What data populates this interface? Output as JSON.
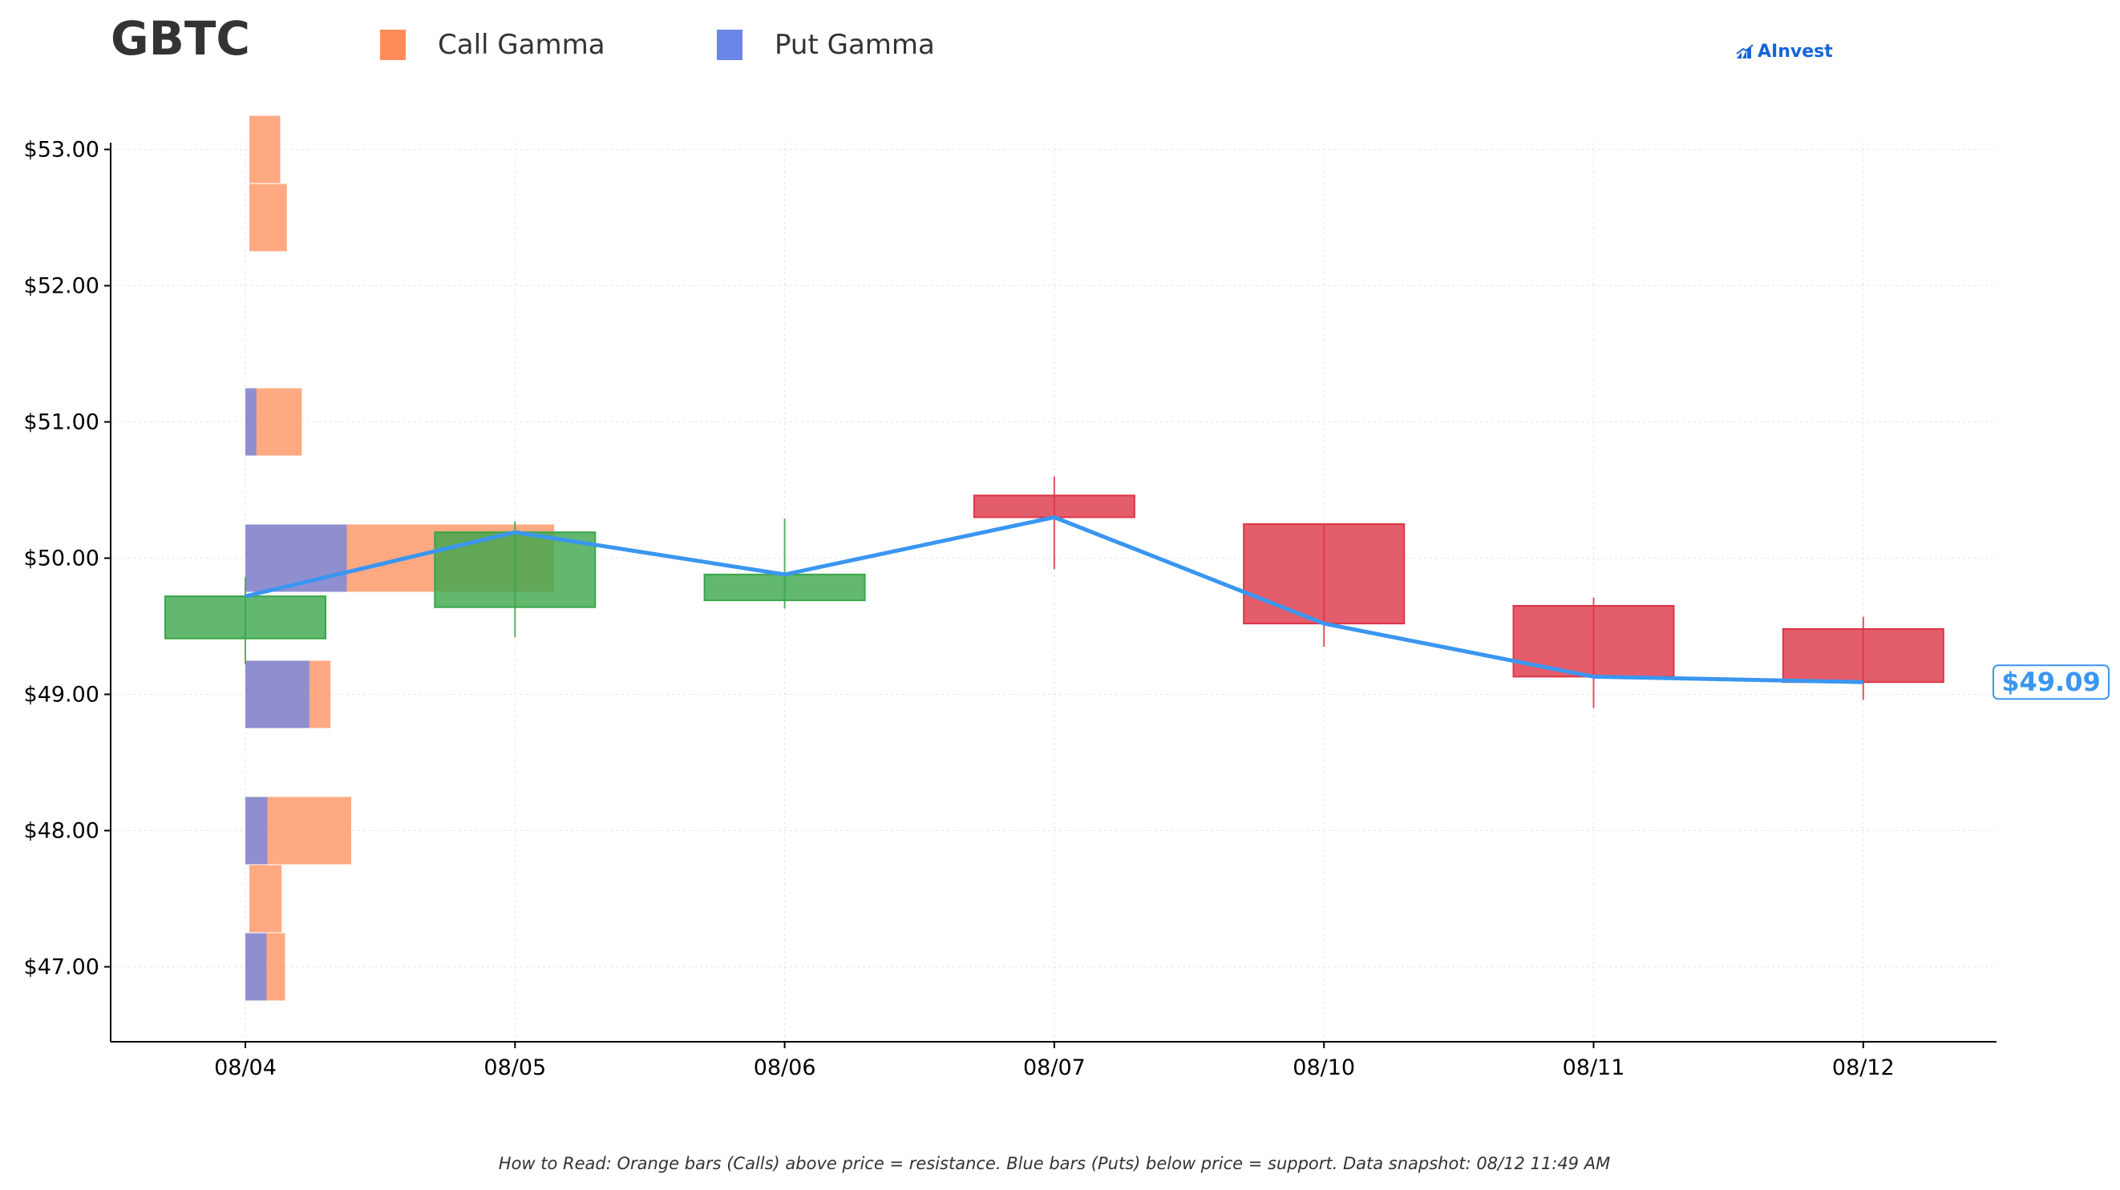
{
  "ticker": "GBTC",
  "legend": {
    "call_label": "Call Gamma",
    "put_label": "Put Gamma"
  },
  "brand": {
    "name": "AInvest"
  },
  "colors": {
    "call": "#FF8C5A",
    "put": "#6A87E8",
    "up": "#3AA64A",
    "down": "#DC3545",
    "price_line": "#3A96F0"
  },
  "footnote": "How to Read: Orange bars (Calls) above price = resistance. Blue bars (Puts) below price = support. Data snapshot: 08/12 11:49 AM",
  "chart_data": {
    "type": "candlestick",
    "title": "GBTC",
    "categories": [
      "08/04",
      "08/05",
      "08/06",
      "08/07",
      "08/10",
      "08/11",
      "08/12"
    ],
    "ylim": [
      46.45,
      53.05
    ],
    "yticks": [
      47.0,
      48.0,
      49.0,
      50.0,
      51.0,
      52.0,
      53.0
    ],
    "ytick_labels": [
      "$47.00",
      "$48.00",
      "$49.00",
      "$50.00",
      "$51.00",
      "$52.00",
      "$53.00"
    ],
    "grid": true,
    "candles": [
      {
        "date": "08/04",
        "open": 49.41,
        "high": 49.86,
        "low": 49.22,
        "close": 49.72
      },
      {
        "date": "08/05",
        "open": 49.64,
        "high": 50.27,
        "low": 49.42,
        "close": 50.19
      },
      {
        "date": "08/06",
        "open": 49.69,
        "high": 50.29,
        "low": 49.63,
        "close": 49.88
      },
      {
        "date": "08/07",
        "open": 50.46,
        "high": 50.6,
        "low": 49.92,
        "close": 50.3
      },
      {
        "date": "08/10",
        "open": 50.25,
        "high": 50.25,
        "low": 49.35,
        "close": 49.52
      },
      {
        "date": "08/11",
        "open": 49.65,
        "high": 49.71,
        "low": 48.9,
        "close": 49.13
      },
      {
        "date": "08/12",
        "open": 49.48,
        "high": 49.57,
        "low": 48.96,
        "close": 49.09
      }
    ],
    "price_line": {
      "name": "Close",
      "values": [
        49.72,
        50.19,
        49.88,
        50.3,
        49.52,
        49.13,
        49.09
      ]
    },
    "last_price_label": "$49.09",
    "gamma_levels": [
      {
        "strike": 53.0,
        "call": 0.7,
        "put": 0
      },
      {
        "strike": 52.5,
        "call": 0.85,
        "put": 0
      },
      {
        "strike": 51.0,
        "call": 1.28,
        "put": 0.25
      },
      {
        "strike": 50.0,
        "call": 7.0,
        "put": 2.3
      },
      {
        "strike": 49.0,
        "call": 1.93,
        "put": 1.45
      },
      {
        "strike": 48.0,
        "call": 2.4,
        "put": 0.5
      },
      {
        "strike": 47.5,
        "call": 0.73,
        "put": 0
      },
      {
        "strike": 47.0,
        "call": 0.9,
        "put": 0.48
      }
    ]
  }
}
